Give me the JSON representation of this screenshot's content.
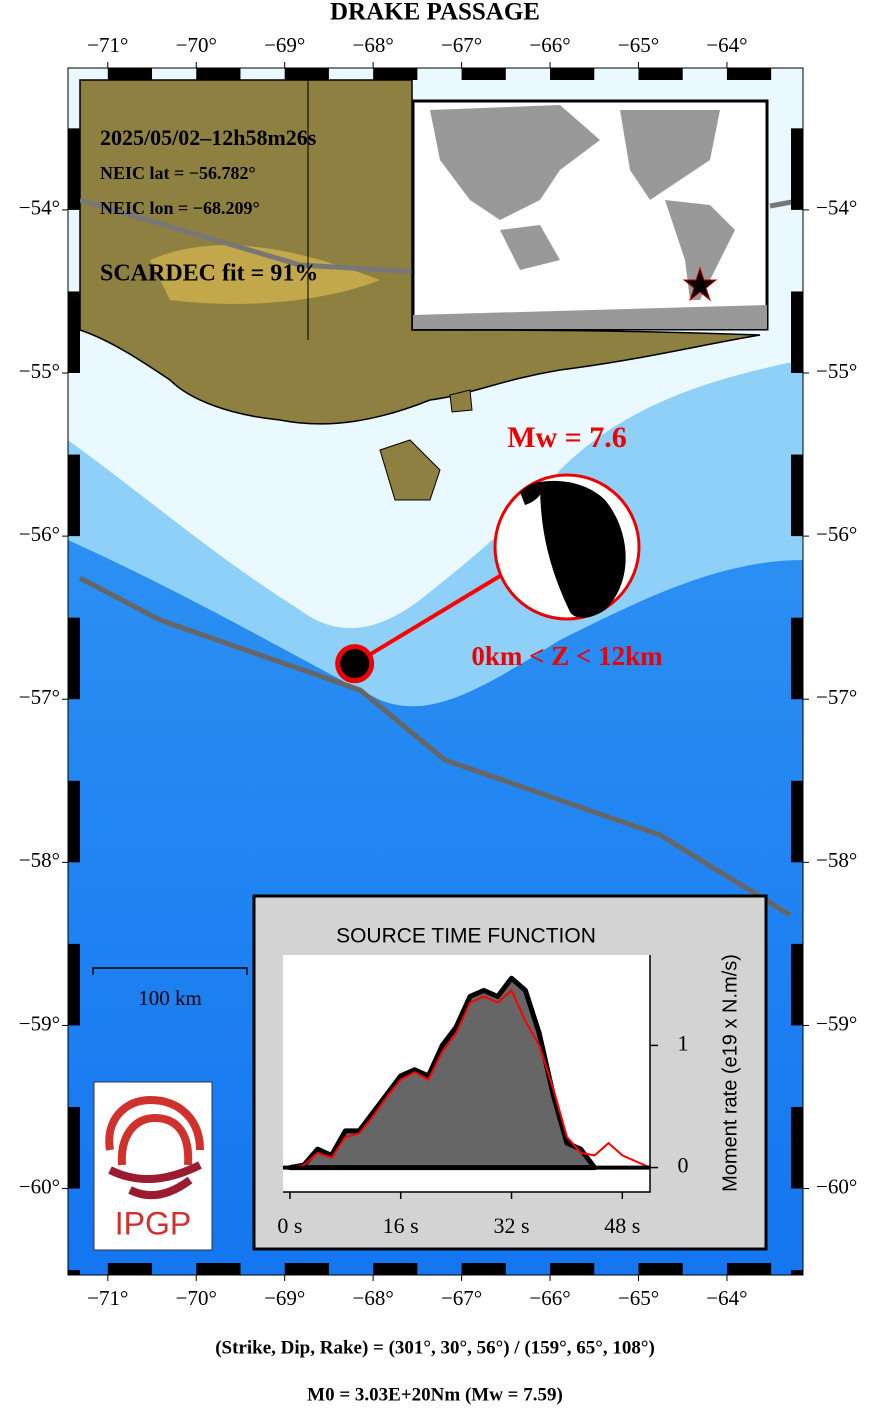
{
  "title": "DRAKE PASSAGE",
  "map": {
    "xlim": [
      -71.45,
      -63.14
    ],
    "ylim": [
      -60.53,
      -53.13
    ],
    "lon_ticks": [
      {
        "value": -71,
        "label": "−71°"
      },
      {
        "value": -70,
        "label": "−70°"
      },
      {
        "value": -69,
        "label": "−69°"
      },
      {
        "value": -68,
        "label": "−68°"
      },
      {
        "value": -67,
        "label": "−67°"
      },
      {
        "value": -66,
        "label": "−66°"
      },
      {
        "value": -65,
        "label": "−65°"
      },
      {
        "value": -64,
        "label": "−64°"
      }
    ],
    "lat_ticks": [
      {
        "value": -54,
        "label": "−54°"
      },
      {
        "value": -55,
        "label": "−55°"
      },
      {
        "value": -56,
        "label": "−56°"
      },
      {
        "value": -57,
        "label": "−57°"
      },
      {
        "value": -58,
        "label": "−58°"
      },
      {
        "value": -59,
        "label": "−59°"
      },
      {
        "value": -60,
        "label": "−60°"
      }
    ],
    "info": [
      "2025/05/02–12h58m26s",
      "NEIC lat  = −56.782°",
      "NEIC lon = −68.209°",
      "SCARDEC fit = 91%"
    ],
    "epicenter": {
      "lat": -56.782,
      "lon": -68.209
    },
    "magnitude_label": "Mw = 7.6",
    "depth_label": "0km < Z <  12km",
    "scale_label": "100 km",
    "logo": "IPGP"
  },
  "stf": {
    "type": "area",
    "title": "SOURCE TIME FUNCTION",
    "y_label": "Moment rate (e19 x N.m/s)",
    "xlim": [
      -1,
      52
    ],
    "ylim": [
      -0.2,
      1.74
    ],
    "xticks": [
      {
        "value": 0,
        "label": "0 s"
      },
      {
        "value": 16,
        "label": "16 s"
      },
      {
        "value": 32,
        "label": "32 s"
      },
      {
        "value": 48,
        "label": "48 s"
      }
    ],
    "yticks": [
      0,
      1
    ],
    "x": [
      0,
      2,
      4,
      6,
      8,
      10,
      12,
      14,
      16,
      18,
      20,
      22,
      24,
      26,
      28,
      30,
      32,
      34,
      36,
      38,
      40,
      42,
      44,
      46,
      48,
      50,
      52
    ],
    "series": [
      {
        "color": "#666666",
        "values": [
          0,
          0.02,
          0.15,
          0.1,
          0.3,
          0.3,
          0.45,
          0.6,
          0.75,
          0.8,
          0.75,
          1.0,
          1.15,
          1.4,
          1.45,
          1.4,
          1.55,
          1.45,
          1.1,
          0.6,
          0.2,
          0.15,
          0,
          null,
          null,
          null,
          null
        ]
      },
      {
        "color": "#ff0000",
        "values": [
          0,
          0.02,
          0.12,
          0.08,
          0.25,
          0.28,
          0.42,
          0.58,
          0.72,
          0.78,
          0.72,
          0.95,
          1.1,
          1.35,
          1.4,
          1.35,
          1.45,
          1.2,
          1.0,
          0.65,
          0.25,
          0.12,
          0.1,
          0.2,
          0.1,
          0.05,
          0
        ]
      }
    ]
  },
  "footer": [
    "(Strike, Dip, Rake) = (301°, 30°, 56°) / (159°, 65°, 108°)",
    "M0 = 3.03E+20Nm  (Mw = 7.59)"
  ]
}
